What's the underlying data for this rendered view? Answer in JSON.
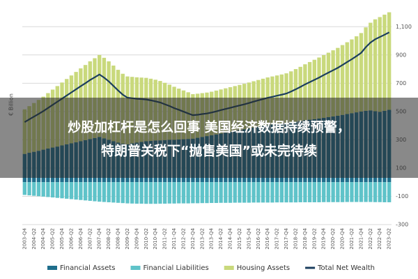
{
  "chart_data": {
    "type": "bar",
    "y_label": "€ Billion",
    "categories": [
      "2003-Q4",
      null,
      "2004-Q2",
      null,
      "2004-Q4",
      null,
      "2005-Q2",
      null,
      "2005-Q4",
      null,
      "2006-Q2",
      null,
      "2006-Q4",
      null,
      "2007-Q2",
      null,
      "2007-Q4",
      null,
      "2008-Q2",
      null,
      "2008-Q4",
      null,
      "2009-Q2",
      null,
      "2009-Q4",
      null,
      "2010-Q2",
      null,
      "2010-Q4",
      null,
      "2011-Q2",
      null,
      "2011-Q4",
      null,
      "2012-Q2",
      null,
      "2012-Q4",
      null,
      "2013-Q2",
      null,
      "2013-Q4",
      null,
      "2014-Q2",
      null,
      "2014-Q4",
      null,
      "2015-Q2",
      null,
      "2015-Q4",
      null,
      "2016-Q2",
      null,
      "2016-Q4",
      null,
      "2017-Q2",
      null,
      "2017-Q4",
      null,
      "2018-Q2",
      null,
      "2018-Q4",
      null,
      "2019-Q2",
      null,
      "2019-Q4",
      null,
      "2020-Q2",
      null,
      "2020-Q4",
      null,
      "2021-Q2",
      null,
      "2021-Q4",
      null,
      "2022-Q2",
      null,
      "2022-Q4",
      null,
      "2023-Q2"
    ],
    "series": [
      {
        "name": "Financial Assets",
        "kind": "bar",
        "color": "#1f6e8c",
        "values": [
          200,
          208,
          215,
          222,
          230,
          238,
          245,
          252,
          260,
          268,
          275,
          282,
          290,
          297,
          305,
          312,
          320,
          310,
          300,
          290,
          280,
          272,
          268,
          275,
          280,
          285,
          290,
          292,
          295,
          296,
          298,
          300,
          300,
          302,
          304,
          306,
          308,
          314,
          320,
          326,
          332,
          338,
          344,
          350,
          356,
          362,
          368,
          374,
          380,
          386,
          392,
          398,
          404,
          408,
          412,
          416,
          420,
          424,
          428,
          432,
          438,
          442,
          446,
          450,
          455,
          460,
          465,
          470,
          476,
          482,
          488,
          494,
          500,
          505,
          508,
          502,
          498,
          505,
          512
        ]
      },
      {
        "name": "Financial Liabilities",
        "kind": "bar",
        "color": "#5fc3c9",
        "values": [
          -90,
          -93,
          -96,
          -99,
          -102,
          -105,
          -108,
          -111,
          -114,
          -117,
          -120,
          -123,
          -126,
          -129,
          -132,
          -135,
          -138,
          -140,
          -142,
          -144,
          -146,
          -148,
          -150,
          -151,
          -152,
          -152,
          -153,
          -153,
          -153,
          -152,
          -152,
          -151,
          -151,
          -150,
          -150,
          -150,
          -149,
          -149,
          -148,
          -148,
          -147,
          -147,
          -146,
          -146,
          -146,
          -145,
          -145,
          -145,
          -145,
          -144,
          -144,
          -144,
          -144,
          -144,
          -143,
          -143,
          -143,
          -143,
          -143,
          -142,
          -142,
          -142,
          -142,
          -142,
          -141,
          -141,
          -141,
          -141,
          -141,
          -140,
          -140,
          -140,
          -140,
          -140,
          -140,
          -141,
          -141,
          -142,
          -142
        ]
      },
      {
        "name": "Housing Assets",
        "kind": "bar",
        "color": "#c9d97c",
        "values": [
          315,
          330,
          345,
          360,
          375,
          392,
          410,
          428,
          445,
          462,
          480,
          498,
          515,
          532,
          550,
          565,
          580,
          570,
          555,
          535,
          515,
          495,
          480,
          470,
          462,
          455,
          448,
          440,
          430,
          420,
          405,
          390,
          375,
          360,
          345,
          330,
          315,
          312,
          310,
          308,
          308,
          310,
          312,
          314,
          316,
          318,
          320,
          322,
          325,
          328,
          331,
          334,
          337,
          340,
          343,
          346,
          350,
          360,
          372,
          384,
          396,
          408,
          420,
          432,
          444,
          456,
          468,
          480,
          494,
          508,
          522,
          538,
          555,
          590,
          620,
          650,
          670,
          680,
          690
        ]
      },
      {
        "name": "Total Net Wealth",
        "kind": "line",
        "color": "#1b3e5e",
        "values": [
          425,
          445,
          464,
          483,
          503,
          525,
          547,
          569,
          591,
          613,
          635,
          657,
          679,
          700,
          723,
          742,
          762,
          740,
          713,
          681,
          649,
          619,
          598,
          594,
          590,
          588,
          585,
          579,
          572,
          564,
          551,
          539,
          524,
          512,
          499,
          486,
          474,
          477,
          482,
          486,
          493,
          501,
          510,
          518,
          526,
          535,
          543,
          551,
          560,
          570,
          579,
          588,
          597,
          604,
          612,
          619,
          627,
          641,
          657,
          674,
          692,
          708,
          724,
          740,
          758,
          775,
          792,
          809,
          829,
          850,
          870,
          892,
          915,
          955,
          988,
          1011,
          1027,
          1043,
          1060
        ]
      }
    ],
    "ylim": [
      -300,
      1200
    ],
    "yticks": [
      -300,
      -100,
      100,
      300,
      500,
      700,
      900,
      {
        "value": 1100,
        "label": "1,100"
      }
    ],
    "grid": true
  },
  "overlay_caption": [
    "炒股加杠杆是怎么回事 美国经济数据持续预警，",
    "特朗普关税下“抛售美国”或未完待续"
  ]
}
